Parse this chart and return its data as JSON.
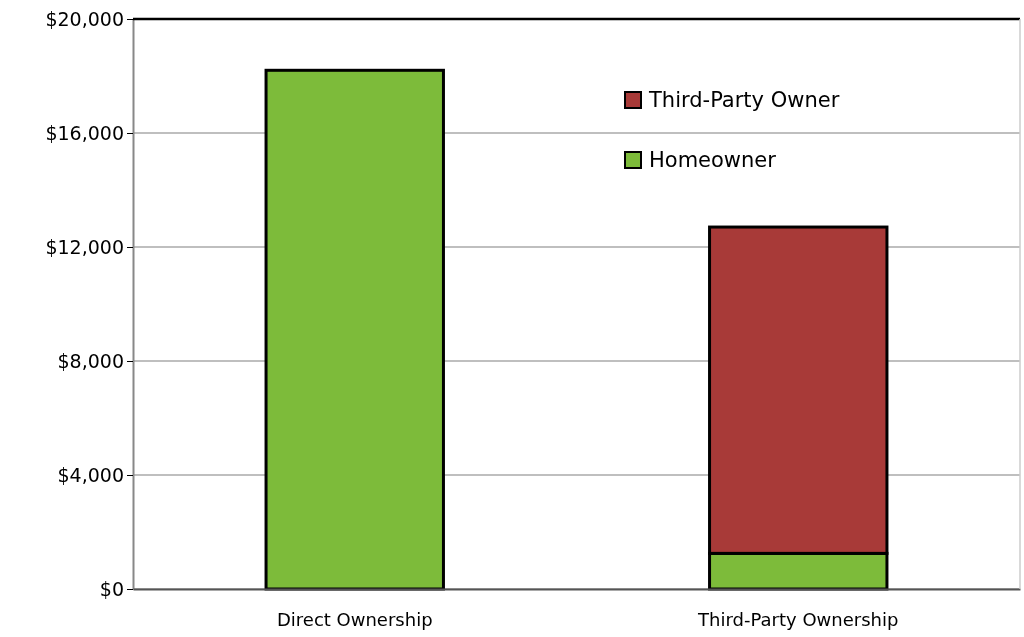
{
  "chart_data": {
    "type": "bar",
    "stacked": true,
    "categories": [
      "Direct Ownership",
      "Third-Party Ownership"
    ],
    "series": [
      {
        "name": "Homeowner",
        "color": "#7dbb3a",
        "values": [
          18200,
          1250
        ]
      },
      {
        "name": "Third-Party Owner",
        "color": "#a83a38",
        "values": [
          0,
          11450
        ]
      }
    ],
    "ylim": [
      0,
      20000
    ],
    "yticks": [
      {
        "value": 0,
        "label": "$0"
      },
      {
        "value": 4000,
        "label": "$4,000"
      },
      {
        "value": 8000,
        "label": "$8,000"
      },
      {
        "value": 12000,
        "label": "$12,000"
      },
      {
        "value": 16000,
        "label": "$16,000"
      },
      {
        "value": 20000,
        "label": "$20,000"
      }
    ],
    "grid": "y",
    "legend": "top right"
  }
}
